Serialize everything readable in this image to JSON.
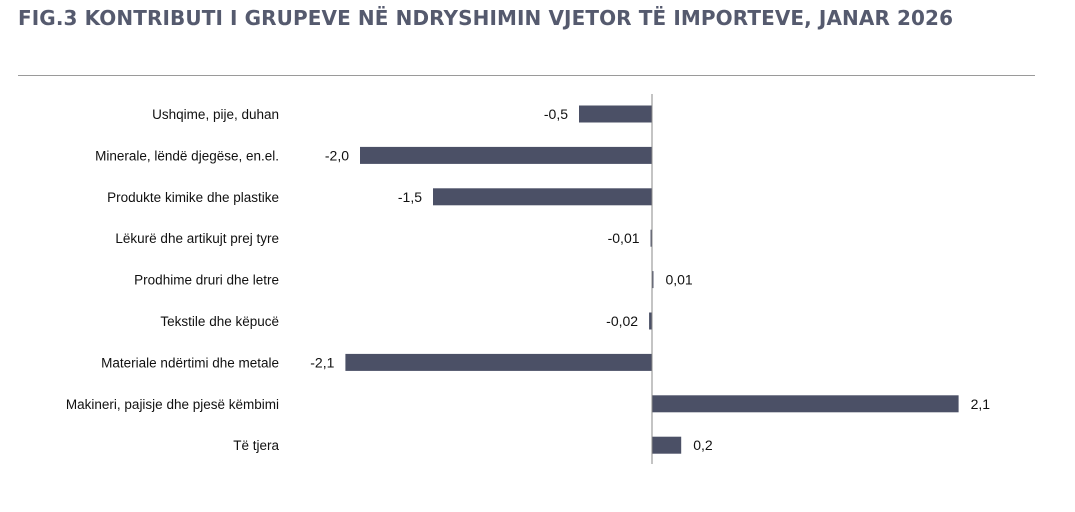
{
  "title": "FIG.3 KONTRIBUTI I GRUPEVE NË NDRYSHIMIN VJETOR TË IMPORTEVE, JANAR 2026",
  "colors": {
    "bar": "#4b5066",
    "title": "#555a6e",
    "axis": "#888888"
  },
  "chart_data": {
    "type": "bar",
    "orientation": "horizontal",
    "categories": [
      "Ushqime, pije, duhan",
      "Minerale, lëndë djegëse, en.el.",
      "Produkte kimike dhe plastike",
      "Lëkurë dhe artikujt prej tyre",
      "Prodhime druri dhe letre",
      "Tekstile dhe këpucë",
      "Materiale ndërtimi dhe metale",
      "Makineri, pajisje dhe pjesë këmbimi",
      "Të tjera"
    ],
    "values": [
      -0.5,
      -2.0,
      -1.5,
      -0.01,
      0.01,
      -0.02,
      -2.1,
      2.1,
      0.2
    ],
    "value_labels": [
      "-0,5",
      "-2,0",
      "-1,5",
      "-0,01",
      "0,01",
      "-0,02",
      "-2,1",
      "2,1",
      "0,2"
    ],
    "xlim": [
      -2.1,
      2.1
    ],
    "grid": false,
    "legend": "none"
  }
}
